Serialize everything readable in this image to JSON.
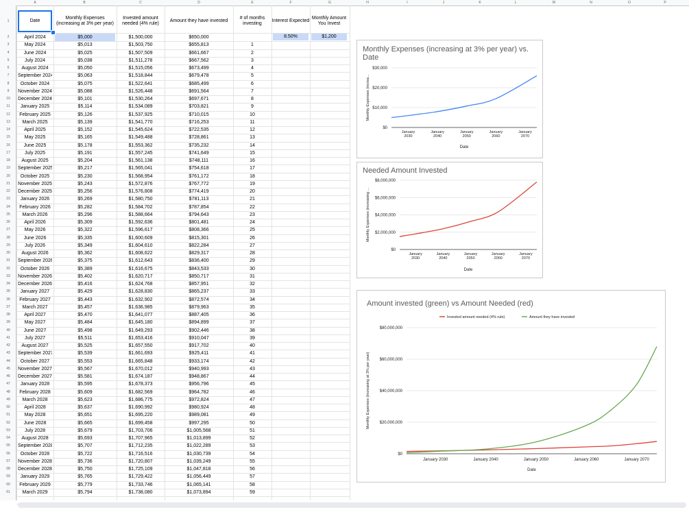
{
  "columns": [
    "A",
    "B",
    "C",
    "D",
    "E",
    "F",
    "G",
    "H",
    "I",
    "J",
    "K",
    "L",
    "M",
    "N",
    "O",
    "P"
  ],
  "headers": {
    "date": "Date",
    "expenses": "Monthly Expenses (increasing at 3% per year)",
    "invested_needed": "Invested amount needed (4% rule)",
    "have_invested": "Amount they have invested",
    "months": "# of months investing",
    "interest": "Interest Expected",
    "monthly_invest": "Monthly Amount You Invest"
  },
  "interest_value": "8.50%",
  "monthly_invest_value": "$1,200",
  "rows": [
    [
      "April 2024",
      "$5,000",
      "$1,500,000",
      "$650,000",
      ""
    ],
    [
      "May 2024",
      "$5,013",
      "$1,503,750",
      "$655,813",
      "1"
    ],
    [
      "June 2024",
      "$5,025",
      "$1,507,509",
      "$661,667",
      "2"
    ],
    [
      "July 2024",
      "$5,038",
      "$1,511,278",
      "$667,562",
      "3"
    ],
    [
      "August 2024",
      "$5,050",
      "$1,515,056",
      "$673,499",
      "4"
    ],
    [
      "September 2024",
      "$5,063",
      "$1,518,844",
      "$679,478",
      "5"
    ],
    [
      "October 2024",
      "$5,075",
      "$1,522,641",
      "$685,499",
      "6"
    ],
    [
      "November 2024",
      "$5,088",
      "$1,526,448",
      "$691,564",
      "7"
    ],
    [
      "December 2024",
      "$5,101",
      "$1,530,264",
      "$697,671",
      "8"
    ],
    [
      "January 2025",
      "$5,114",
      "$1,534,089",
      "$703,821",
      "9"
    ],
    [
      "February 2025",
      "$5,126",
      "$1,537,925",
      "$710,015",
      "10"
    ],
    [
      "March 2025",
      "$5,139",
      "$1,541,770",
      "$716,253",
      "11"
    ],
    [
      "April 2025",
      "$5,152",
      "$1,545,624",
      "$722,535",
      "12"
    ],
    [
      "May 2025",
      "$5,165",
      "$1,549,488",
      "$728,861",
      "13"
    ],
    [
      "June 2025",
      "$5,178",
      "$1,553,362",
      "$735,232",
      "14"
    ],
    [
      "July 2025",
      "$5,191",
      "$1,557,245",
      "$741,649",
      "15"
    ],
    [
      "August 2025",
      "$5,204",
      "$1,561,138",
      "$748,111",
      "16"
    ],
    [
      "September 2025",
      "$5,217",
      "$1,565,041",
      "$754,618",
      "17"
    ],
    [
      "October 2025",
      "$5,230",
      "$1,568,954",
      "$761,172",
      "18"
    ],
    [
      "November 2025",
      "$5,243",
      "$1,572,876",
      "$767,772",
      "19"
    ],
    [
      "December 2025",
      "$5,256",
      "$1,576,808",
      "$774,419",
      "20"
    ],
    [
      "January 2026",
      "$5,269",
      "$1,580,750",
      "$781,113",
      "21"
    ],
    [
      "February 2026",
      "$5,282",
      "$1,584,702",
      "$787,854",
      "22"
    ],
    [
      "March 2026",
      "$5,296",
      "$1,588,664",
      "$794,643",
      "23"
    ],
    [
      "April 2026",
      "$5,309",
      "$1,592,636",
      "$801,481",
      "24"
    ],
    [
      "May 2026",
      "$5,322",
      "$1,596,617",
      "$808,366",
      "25"
    ],
    [
      "June 2026",
      "$5,335",
      "$1,600,609",
      "$815,301",
      "26"
    ],
    [
      "July 2026",
      "$5,349",
      "$1,604,610",
      "$822,284",
      "27"
    ],
    [
      "August 2026",
      "$5,362",
      "$1,608,622",
      "$829,317",
      "28"
    ],
    [
      "September 2026",
      "$5,375",
      "$1,612,643",
      "$836,400",
      "29"
    ],
    [
      "October 2026",
      "$5,389",
      "$1,616,675",
      "$843,533",
      "30"
    ],
    [
      "November 2026",
      "$5,402",
      "$1,620,717",
      "$850,717",
      "31"
    ],
    [
      "December 2026",
      "$5,416",
      "$1,624,768",
      "$857,951",
      "32"
    ],
    [
      "January 2027",
      "$5,429",
      "$1,628,830",
      "$865,237",
      "33"
    ],
    [
      "February 2027",
      "$5,443",
      "$1,632,902",
      "$872,574",
      "34"
    ],
    [
      "March 2027",
      "$5,457",
      "$1,636,985",
      "$879,963",
      "35"
    ],
    [
      "April 2027",
      "$5,470",
      "$1,641,077",
      "$887,405",
      "36"
    ],
    [
      "May 2027",
      "$5,484",
      "$1,645,180",
      "$894,899",
      "37"
    ],
    [
      "June 2027",
      "$5,498",
      "$1,649,293",
      "$902,446",
      "38"
    ],
    [
      "July 2027",
      "$5,511",
      "$1,653,416",
      "$910,047",
      "39"
    ],
    [
      "August 2027",
      "$5,525",
      "$1,657,550",
      "$917,702",
      "40"
    ],
    [
      "September 2027",
      "$5,539",
      "$1,661,693",
      "$925,411",
      "41"
    ],
    [
      "October 2027",
      "$5,553",
      "$1,665,848",
      "$933,174",
      "42"
    ],
    [
      "November 2027",
      "$5,567",
      "$1,670,012",
      "$940,993",
      "43"
    ],
    [
      "December 2027",
      "$5,581",
      "$1,674,187",
      "$948,867",
      "44"
    ],
    [
      "January 2028",
      "$5,595",
      "$1,678,373",
      "$956,796",
      "45"
    ],
    [
      "February 2028",
      "$5,609",
      "$1,682,569",
      "$964,782",
      "46"
    ],
    [
      "March 2028",
      "$5,623",
      "$1,686,775",
      "$972,824",
      "47"
    ],
    [
      "April 2028",
      "$5,637",
      "$1,690,992",
      "$980,924",
      "48"
    ],
    [
      "May 2028",
      "$5,651",
      "$1,695,220",
      "$989,081",
      "49"
    ],
    [
      "June 2028",
      "$5,665",
      "$1,699,458",
      "$997,295",
      "50"
    ],
    [
      "July 2028",
      "$5,679",
      "$1,703,706",
      "$1,005,568",
      "51"
    ],
    [
      "August 2028",
      "$5,693",
      "$1,707,965",
      "$1,013,899",
      "52"
    ],
    [
      "September 2028",
      "$5,707",
      "$1,712,235",
      "$1,022,289",
      "53"
    ],
    [
      "October 2028",
      "$5,722",
      "$1,716,516",
      "$1,030,739",
      "54"
    ],
    [
      "November 2028",
      "$5,736",
      "$1,720,807",
      "$1,039,249",
      "55"
    ],
    [
      "December 2028",
      "$5,750",
      "$1,725,109",
      "$1,047,818",
      "56"
    ],
    [
      "January 2029",
      "$5,765",
      "$1,729,422",
      "$1,056,449",
      "57"
    ],
    [
      "February 2029",
      "$5,779",
      "$1,733,746",
      "$1,065,141",
      "58"
    ],
    [
      "March 2029",
      "$5,794",
      "$1,738,080",
      "$1,073,894",
      "59"
    ]
  ],
  "colors": {
    "blue_line": "#4285f4",
    "red_line": "#db4437",
    "green_line": "#6aa84f",
    "selected_fill": "#c9daf8",
    "selection_border": "#1a73e8"
  },
  "chart_data": [
    {
      "type": "line",
      "title": "Monthly Expenses          (increasing at 3% per year) vs. Date",
      "ylabel": "Monthly Expenses (increa...",
      "xlabel": "Date",
      "yticks": [
        "$30,000",
        "$20,000",
        "$10,000",
        "$0"
      ],
      "xticks": [
        "January 2030",
        "January 2040",
        "January 2050",
        "January 2060",
        "January 2070"
      ],
      "ylim": [
        0,
        30000
      ],
      "x_years": [
        2024.25,
        2030,
        2040,
        2050,
        2060,
        2074
      ],
      "series": [
        {
          "values": [
            5000,
            6000,
            8000,
            10800,
            14500,
            26000
          ],
          "color": "#4285f4"
        }
      ]
    },
    {
      "type": "line",
      "title": "Needed Amount Invested",
      "ylabel": "Monthly Expenses (increasing ...",
      "xlabel": "Date",
      "yticks": [
        "$8,000,000",
        "$6,000,000",
        "$4,000,000",
        "$2,000,000",
        "$0"
      ],
      "xticks": [
        "January 2030",
        "January 2040",
        "January 2050",
        "January 2060",
        "January 2070"
      ],
      "ylim": [
        0,
        8000000
      ],
      "x_years": [
        2024.25,
        2030,
        2040,
        2050,
        2060,
        2074
      ],
      "series": [
        {
          "values": [
            1500000,
            1800000,
            2400000,
            3250000,
            4350000,
            7800000
          ],
          "color": "#db4437"
        }
      ]
    },
    {
      "type": "line",
      "title": "Amount invested (green) vs Amount Needed (red)",
      "ylabel": "Monthly Expenses (increasing at 3% per year)",
      "xlabel": "Date",
      "yticks": [
        "$80,000,000",
        "$60,000,000",
        "$40,000,000",
        "$20,000,000",
        "$0"
      ],
      "xticks": [
        "January 2030",
        "January 2040",
        "January 2050",
        "January 2060",
        "January 2070"
      ],
      "ylim": [
        0,
        80000000
      ],
      "legend": [
        "Invested amount needed (4% rule)",
        "Amount they have invested"
      ],
      "x_years": [
        2024.25,
        2030,
        2040,
        2050,
        2060,
        2065,
        2070,
        2074
      ],
      "series": [
        {
          "name": "Invested amount needed (4% rule)",
          "values": [
            1500000,
            1800000,
            2400000,
            3250000,
            4350000,
            5000000,
            6400000,
            7800000
          ],
          "color": "#db4437"
        },
        {
          "name": "Amount they have invested",
          "values": [
            650000,
            1500000,
            3000000,
            7500000,
            18000000,
            28000000,
            44000000,
            68000000
          ],
          "color": "#6aa84f"
        }
      ]
    }
  ]
}
